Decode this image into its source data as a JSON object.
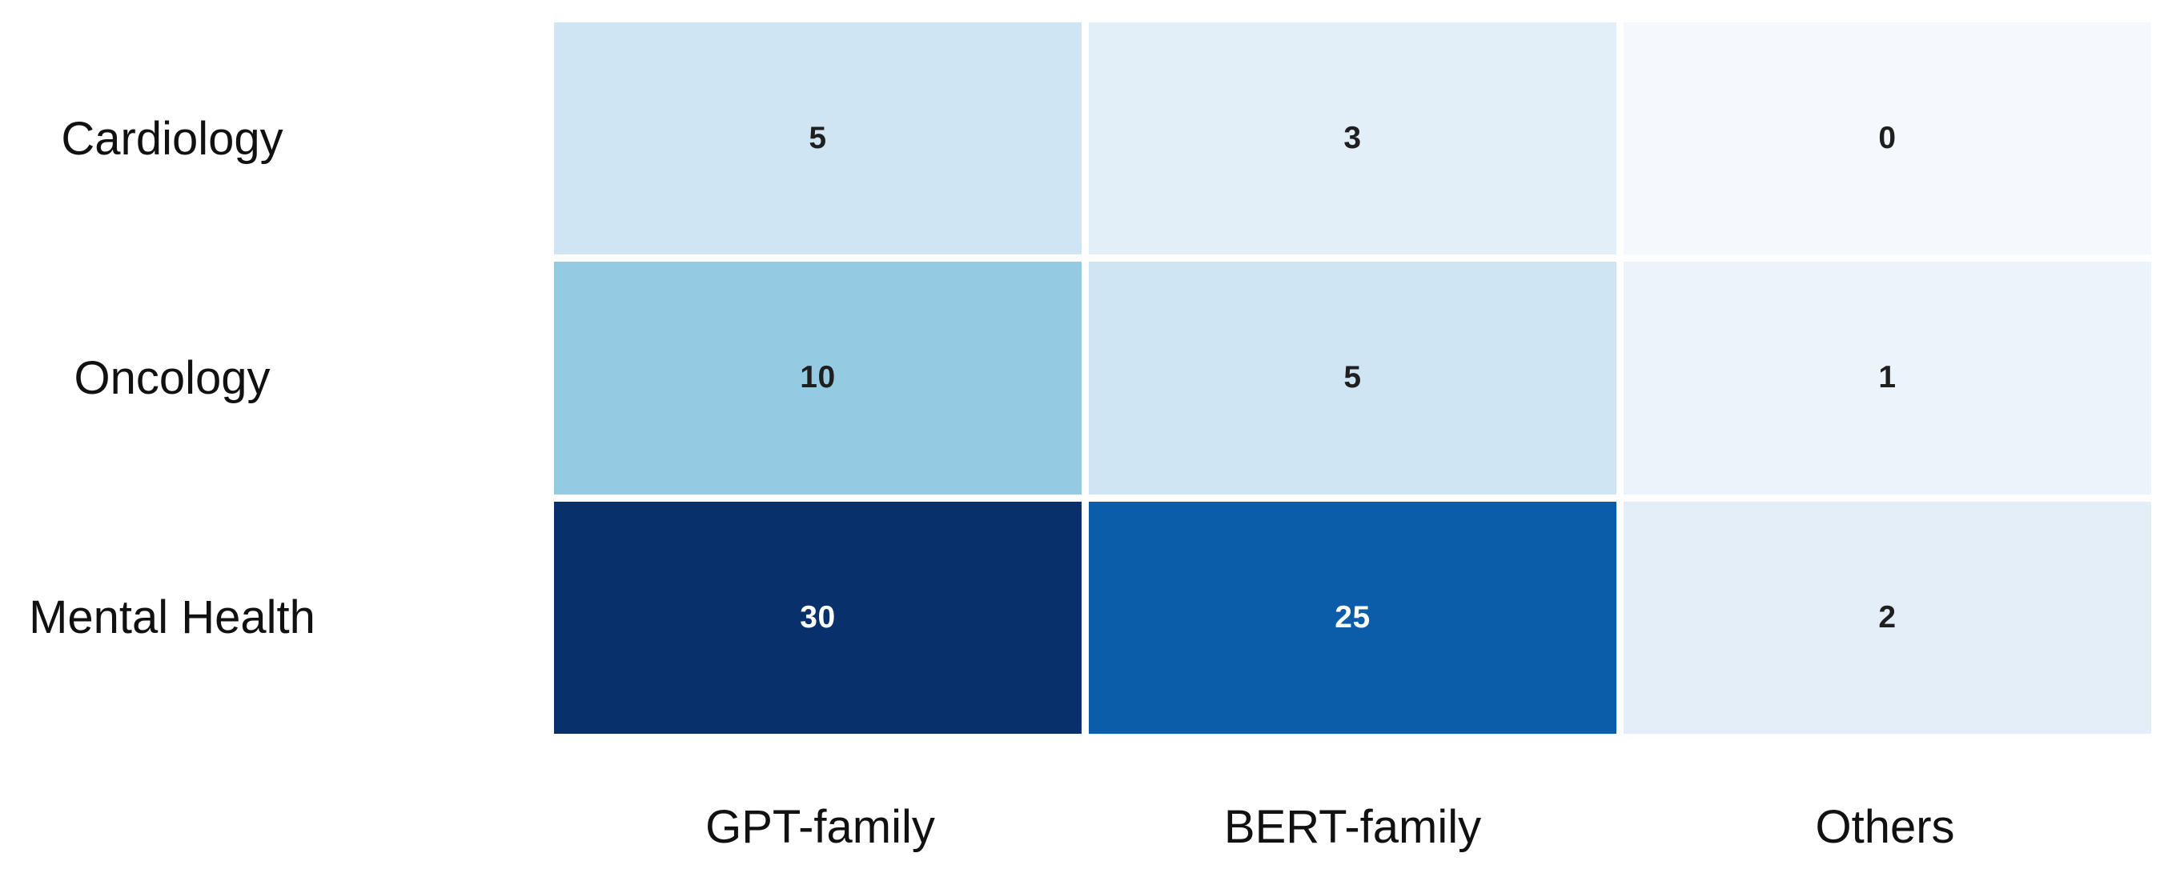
{
  "chart_data": {
    "type": "heatmap",
    "rows": [
      "Cardiology",
      "Oncology",
      "Mental Health"
    ],
    "columns": [
      "GPT-family",
      "BERT-family",
      "Others"
    ],
    "values": [
      [
        5,
        3,
        0
      ],
      [
        10,
        5,
        1
      ],
      [
        30,
        25,
        2
      ]
    ],
    "vmin": 0,
    "vmax": 30,
    "colormap": "Blues",
    "legend": "none",
    "grid": "white-gaps-between-cells",
    "colors": {
      "background": "#ffffff",
      "label_text": "#111111",
      "cell_text_dark": "#1f1f1f",
      "cell_text_light": "#ffffff"
    }
  },
  "labels": {
    "rows": [
      "Cardiology",
      "Oncology",
      "Mental Health"
    ],
    "cols": [
      "GPT-family",
      "BERT-family",
      "Others"
    ]
  },
  "cells": [
    {
      "row": "Cardiology",
      "col": "GPT-family",
      "value": "5",
      "bg": "#d0e5f3",
      "fg": "#1f1f1f"
    },
    {
      "row": "Cardiology",
      "col": "BERT-family",
      "value": "3",
      "bg": "#e2eef8",
      "fg": "#1f1f1f"
    },
    {
      "row": "Cardiology",
      "col": "Others",
      "value": "0",
      "bg": "#f5f9fd",
      "fg": "#1f1f1f"
    },
    {
      "row": "Oncology",
      "col": "GPT-family",
      "value": "10",
      "bg": "#94cbe3",
      "fg": "#1f1f1f"
    },
    {
      "row": "Oncology",
      "col": "BERT-family",
      "value": "5",
      "bg": "#d0e5f3",
      "fg": "#1f1f1f"
    },
    {
      "row": "Oncology",
      "col": "Others",
      "value": "1",
      "bg": "#ecf4fb",
      "fg": "#1f1f1f"
    },
    {
      "row": "Mental Health",
      "col": "GPT-family",
      "value": "30",
      "bg": "#08306b",
      "fg": "#ffffff"
    },
    {
      "row": "Mental Health",
      "col": "BERT-family",
      "value": "25",
      "bg": "#0b5da9",
      "fg": "#ffffff"
    },
    {
      "row": "Mental Health",
      "col": "Others",
      "value": "2",
      "bg": "#e4eef9",
      "fg": "#1f1f1f"
    }
  ]
}
